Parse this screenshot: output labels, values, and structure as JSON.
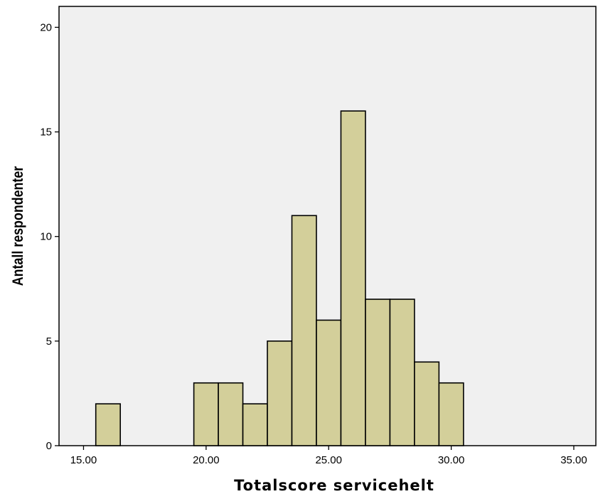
{
  "chart_data": {
    "type": "bar",
    "subtype": "histogram",
    "title": "",
    "xlabel": "Totalscore servicehelt",
    "ylabel": "Antall respondenter",
    "xlim": [
      14,
      35.9
    ],
    "ylim": [
      0,
      21
    ],
    "bin_width": 1,
    "x_ticks": [
      15,
      20,
      25,
      30,
      35
    ],
    "x_tick_labels": [
      "15.00",
      "20.00",
      "25.00",
      "30.00",
      "35.00"
    ],
    "y_ticks": [
      0,
      5,
      10,
      15,
      20
    ],
    "y_tick_labels": [
      "0",
      "5",
      "10",
      "15",
      "20"
    ],
    "bars": [
      {
        "x": 16,
        "count": 2
      },
      {
        "x": 20,
        "count": 3
      },
      {
        "x": 21,
        "count": 3
      },
      {
        "x": 22,
        "count": 2
      },
      {
        "x": 23,
        "count": 5
      },
      {
        "x": 24,
        "count": 11
      },
      {
        "x": 25,
        "count": 6
      },
      {
        "x": 26,
        "count": 16
      },
      {
        "x": 27,
        "count": 7
      },
      {
        "x": 28,
        "count": 7
      },
      {
        "x": 29,
        "count": 4
      },
      {
        "x": 30,
        "count": 3
      }
    ],
    "grid": false,
    "legend": "none",
    "colors": {
      "bar_fill": "#d3cf9a",
      "bar_stroke": "#000000",
      "plot_background": "#f0f0f0"
    }
  }
}
